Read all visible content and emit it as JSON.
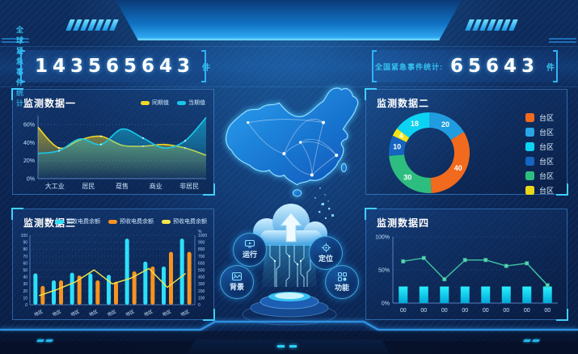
{
  "counters": {
    "left": {
      "label": "全球紧急事件统计:",
      "value": "143565643",
      "unit": "件"
    },
    "right": {
      "label": "全国紧急事件统计:",
      "value": "65643",
      "unit": "件"
    }
  },
  "panels": [
    {
      "title": "监测数据一"
    },
    {
      "title": "监测数据二"
    },
    {
      "title": "监测数据三"
    },
    {
      "title": "监测数据四"
    }
  ],
  "center": {
    "badges": [
      {
        "label": "运行",
        "icon": "monitor-icon"
      },
      {
        "label": "定位",
        "icon": "locate-icon"
      },
      {
        "label": "背景",
        "icon": "image-icon"
      },
      {
        "label": "功能",
        "icon": "apps-icon"
      }
    ]
  },
  "colors": {
    "accent_cyan": "#35c4f0",
    "panel_border": "#4696e6",
    "white": "#ffffff"
  },
  "chart_data": [
    {
      "type": "area",
      "title": "监测数据一",
      "categories": [
        "大工业",
        "居民",
        "趸售",
        "商业",
        "非居民"
      ],
      "series": [
        {
          "name": "同期值",
          "color": "#f5d821",
          "values": [
            57,
            34,
            43,
            47,
            37,
            36,
            38,
            34,
            26
          ]
        },
        {
          "name": "当期值",
          "color": "#18c8e8",
          "values": [
            28,
            31,
            44,
            38,
            55,
            45,
            34,
            42,
            68
          ]
        }
      ],
      "ylim": [
        0,
        70
      ],
      "yticks": [
        {
          "v": 0,
          "label": "0%"
        },
        {
          "v": 20,
          "label": "20%"
        },
        {
          "v": 40,
          "label": "40%"
        },
        {
          "v": 60,
          "label": "60%"
        }
      ],
      "grid": true,
      "legend_position": "top-right"
    },
    {
      "type": "donut",
      "title": "监测数据二",
      "slices": [
        {
          "label": "台区",
          "value": 20,
          "color": "#1f9de0"
        },
        {
          "label": "台区",
          "value": 40,
          "color": "#f26a1d"
        },
        {
          "label": "台区",
          "value": 30,
          "color": "#2dbe7f"
        },
        {
          "label": "台区",
          "value": 10,
          "color": "#1464c0"
        },
        {
          "label": "台区",
          "value": 4,
          "color": "#f0e418"
        },
        {
          "label": "台区",
          "value": 18,
          "color": "#0cd3f2"
        }
      ],
      "legend": [
        {
          "label": "台区",
          "color": "#f26a1d"
        },
        {
          "label": "台区",
          "color": "#2aa6e8"
        },
        {
          "label": "台区",
          "color": "#0cd3f2"
        },
        {
          "label": "台区",
          "color": "#1464c0"
        },
        {
          "label": "台区",
          "color": "#2dbe7f"
        },
        {
          "label": "台区",
          "color": "#e8d818"
        }
      ],
      "start": "top",
      "direction": "clockwise",
      "legend_position": "right"
    },
    {
      "type": "bar-line",
      "title": "监测数据三",
      "categories": [
        "地区",
        "地区",
        "地区",
        "地区",
        "地区",
        "地区",
        "地区",
        "地区",
        "地区"
      ],
      "series": [
        {
          "name": "预收电费余额",
          "type": "bar",
          "color": "#2ce0f8",
          "values": [
            45,
            35,
            46,
            45,
            43,
            95,
            62,
            55,
            95
          ]
        },
        {
          "name": "预收电费余额",
          "type": "bar",
          "color": "#f7941e",
          "values": [
            27,
            35,
            42,
            35,
            33,
            48,
            55,
            76,
            76
          ]
        },
        {
          "name": "预收电费余额",
          "type": "line",
          "color": "#f7e54a",
          "values": [
            13,
            22,
            33,
            50,
            30,
            38,
            52,
            25,
            45
          ]
        }
      ],
      "y_left": {
        "min": 0,
        "max": 100,
        "step": 10
      },
      "y_right": {
        "min": 0,
        "max": 1000,
        "step": 100,
        "unit": "%"
      },
      "grid": true,
      "legend_position": "top-right"
    },
    {
      "type": "line-bar",
      "title": "监测数据四",
      "categories": [
        "00",
        "00",
        "00",
        "00",
        "00",
        "00",
        "00",
        "00"
      ],
      "line": {
        "color": "#3fc7a4",
        "values": [
          63,
          68,
          36,
          65,
          65,
          56,
          60,
          27
        ]
      },
      "bars": {
        "color": "#00e0ff",
        "values": [
          25,
          25,
          25,
          25,
          25,
          25,
          25,
          25
        ]
      },
      "yticks": [
        {
          "v": 0,
          "label": "0%"
        },
        {
          "v": 50,
          "label": "50%"
        },
        {
          "v": 100,
          "label": "100%"
        }
      ],
      "ylim": [
        0,
        100
      ]
    }
  ]
}
